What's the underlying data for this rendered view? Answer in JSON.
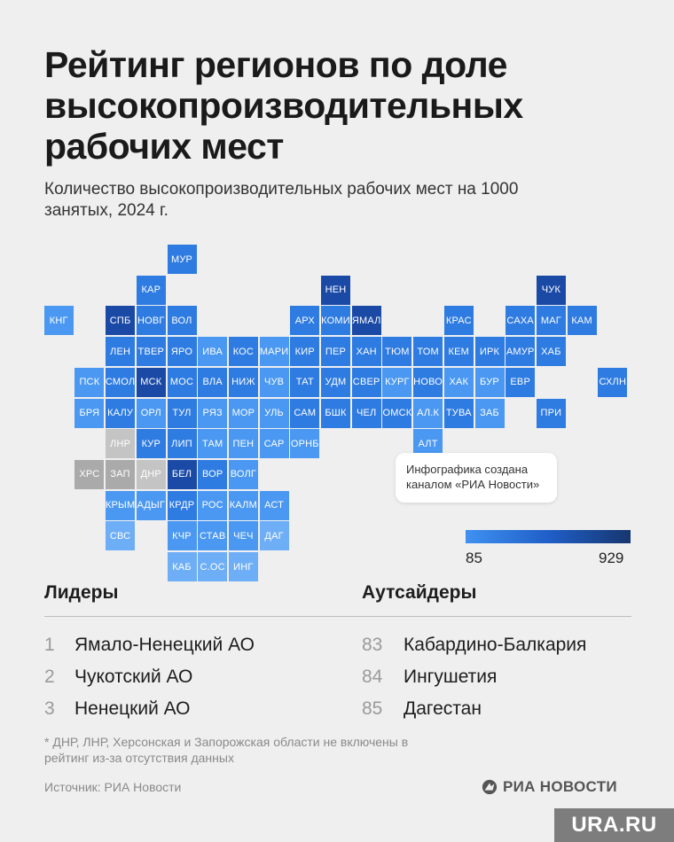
{
  "header": {
    "title": "Рейтинг регионов по доле высокопроизводительных рабочих мест",
    "subtitle": "Количество высокопроизводительных рабочих мест на 1000 занятых, 2024 г."
  },
  "map": {
    "colors": {
      "dark": "#1b4aa6",
      "mid": "#2e7be2",
      "light": "#4a98f2",
      "pale": "#6eaef7",
      "gray": "#c4c4c4",
      "nodata": "#aaaaaa"
    },
    "cells": [
      {
        "label": "МУР",
        "col": 5,
        "row": 0,
        "shade": "mid"
      },
      {
        "label": "КАР",
        "col": 4,
        "row": 1,
        "shade": "mid"
      },
      {
        "label": "НЕН",
        "col": 10,
        "row": 1,
        "shade": "dark"
      },
      {
        "label": "ЧУК",
        "col": 17,
        "row": 1,
        "shade": "dark"
      },
      {
        "label": "КНГ",
        "col": 1,
        "row": 2,
        "shade": "light"
      },
      {
        "label": "СПБ",
        "col": 3,
        "row": 2,
        "shade": "dark"
      },
      {
        "label": "НОВГ",
        "col": 4,
        "row": 2,
        "shade": "mid"
      },
      {
        "label": "ВОЛ",
        "col": 5,
        "row": 2,
        "shade": "mid"
      },
      {
        "label": "АРХ",
        "col": 9,
        "row": 2,
        "shade": "mid"
      },
      {
        "label": "КОМИ",
        "col": 10,
        "row": 2,
        "shade": "mid"
      },
      {
        "label": "ЯМАЛ",
        "col": 11,
        "row": 2,
        "shade": "dark"
      },
      {
        "label": "КРАС",
        "col": 14,
        "row": 2,
        "shade": "mid"
      },
      {
        "label": "САХА",
        "col": 16,
        "row": 2,
        "shade": "mid"
      },
      {
        "label": "МАГ",
        "col": 17,
        "row": 2,
        "shade": "mid"
      },
      {
        "label": "КАМ",
        "col": 18,
        "row": 2,
        "shade": "mid"
      },
      {
        "label": "ЛЕН",
        "col": 3,
        "row": 3,
        "shade": "mid"
      },
      {
        "label": "ТВЕР",
        "col": 4,
        "row": 3,
        "shade": "mid"
      },
      {
        "label": "ЯРО",
        "col": 5,
        "row": 3,
        "shade": "mid"
      },
      {
        "label": "ИВА",
        "col": 6,
        "row": 3,
        "shade": "light"
      },
      {
        "label": "КОС",
        "col": 7,
        "row": 3,
        "shade": "mid"
      },
      {
        "label": "МАРИ",
        "col": 8,
        "row": 3,
        "shade": "light"
      },
      {
        "label": "КИР",
        "col": 9,
        "row": 3,
        "shade": "mid"
      },
      {
        "label": "ПЕР",
        "col": 10,
        "row": 3,
        "shade": "mid"
      },
      {
        "label": "ХАН",
        "col": 11,
        "row": 3,
        "shade": "mid"
      },
      {
        "label": "ТЮМ",
        "col": 12,
        "row": 3,
        "shade": "mid"
      },
      {
        "label": "ТОМ",
        "col": 13,
        "row": 3,
        "shade": "mid"
      },
      {
        "label": "КЕМ",
        "col": 14,
        "row": 3,
        "shade": "mid"
      },
      {
        "label": "ИРК",
        "col": 15,
        "row": 3,
        "shade": "mid"
      },
      {
        "label": "АМУР",
        "col": 16,
        "row": 3,
        "shade": "mid"
      },
      {
        "label": "ХАБ",
        "col": 17,
        "row": 3,
        "shade": "mid"
      },
      {
        "label": "ПСК",
        "col": 2,
        "row": 4,
        "shade": "light"
      },
      {
        "label": "СМОЛ",
        "col": 3,
        "row": 4,
        "shade": "mid"
      },
      {
        "label": "МСК",
        "col": 4,
        "row": 4,
        "shade": "dark"
      },
      {
        "label": "МОС",
        "col": 5,
        "row": 4,
        "shade": "mid"
      },
      {
        "label": "ВЛА",
        "col": 6,
        "row": 4,
        "shade": "mid"
      },
      {
        "label": "НИЖ",
        "col": 7,
        "row": 4,
        "shade": "mid"
      },
      {
        "label": "ЧУВ",
        "col": 8,
        "row": 4,
        "shade": "light"
      },
      {
        "label": "ТАТ",
        "col": 9,
        "row": 4,
        "shade": "mid"
      },
      {
        "label": "УДМ",
        "col": 10,
        "row": 4,
        "shade": "mid"
      },
      {
        "label": "СВЕР",
        "col": 11,
        "row": 4,
        "shade": "mid"
      },
      {
        "label": "КУРГ",
        "col": 12,
        "row": 4,
        "shade": "light"
      },
      {
        "label": "НОВО",
        "col": 13,
        "row": 4,
        "shade": "mid"
      },
      {
        "label": "ХАК",
        "col": 14,
        "row": 4,
        "shade": "light"
      },
      {
        "label": "БУР",
        "col": 15,
        "row": 4,
        "shade": "light"
      },
      {
        "label": "ЕВР",
        "col": 16,
        "row": 4,
        "shade": "mid"
      },
      {
        "label": "СХЛН",
        "col": 19,
        "row": 4,
        "shade": "mid"
      },
      {
        "label": "БРЯ",
        "col": 2,
        "row": 5,
        "shade": "light"
      },
      {
        "label": "КАЛУ",
        "col": 3,
        "row": 5,
        "shade": "mid"
      },
      {
        "label": "ОРЛ",
        "col": 4,
        "row": 5,
        "shade": "light"
      },
      {
        "label": "ТУЛ",
        "col": 5,
        "row": 5,
        "shade": "mid"
      },
      {
        "label": "РЯЗ",
        "col": 6,
        "row": 5,
        "shade": "light"
      },
      {
        "label": "МОР",
        "col": 7,
        "row": 5,
        "shade": "light"
      },
      {
        "label": "УЛЬ",
        "col": 8,
        "row": 5,
        "shade": "light"
      },
      {
        "label": "САМ",
        "col": 9,
        "row": 5,
        "shade": "mid"
      },
      {
        "label": "БШК",
        "col": 10,
        "row": 5,
        "shade": "mid"
      },
      {
        "label": "ЧЕЛ",
        "col": 11,
        "row": 5,
        "shade": "mid"
      },
      {
        "label": "ОМСК",
        "col": 12,
        "row": 5,
        "shade": "mid"
      },
      {
        "label": "АЛ.К",
        "col": 13,
        "row": 5,
        "shade": "light"
      },
      {
        "label": "ТУВА",
        "col": 14,
        "row": 5,
        "shade": "mid"
      },
      {
        "label": "ЗАБ",
        "col": 15,
        "row": 5,
        "shade": "light"
      },
      {
        "label": "ПРИ",
        "col": 17,
        "row": 5,
        "shade": "mid"
      },
      {
        "label": "ЛНР",
        "col": 3,
        "row": 6,
        "shade": "gray"
      },
      {
        "label": "КУР",
        "col": 4,
        "row": 6,
        "shade": "mid"
      },
      {
        "label": "ЛИП",
        "col": 5,
        "row": 6,
        "shade": "mid"
      },
      {
        "label": "ТАМ",
        "col": 6,
        "row": 6,
        "shade": "light"
      },
      {
        "label": "ПЕН",
        "col": 7,
        "row": 6,
        "shade": "light"
      },
      {
        "label": "САР",
        "col": 8,
        "row": 6,
        "shade": "light"
      },
      {
        "label": "ОРНБ",
        "col": 9,
        "row": 6,
        "shade": "light"
      },
      {
        "label": "АЛТ",
        "col": 13,
        "row": 6,
        "shade": "light"
      },
      {
        "label": "ХРС",
        "col": 2,
        "row": 7,
        "shade": "nodata"
      },
      {
        "label": "ЗАП",
        "col": 3,
        "row": 7,
        "shade": "nodata"
      },
      {
        "label": "ДНР",
        "col": 4,
        "row": 7,
        "shade": "gray"
      },
      {
        "label": "БЕЛ",
        "col": 5,
        "row": 7,
        "shade": "dark"
      },
      {
        "label": "ВОР",
        "col": 6,
        "row": 7,
        "shade": "mid"
      },
      {
        "label": "ВОЛГ",
        "col": 7,
        "row": 7,
        "shade": "light"
      },
      {
        "label": "КРЫМ",
        "col": 3,
        "row": 8,
        "shade": "light"
      },
      {
        "label": "АДЫГ",
        "col": 4,
        "row": 8,
        "shade": "light"
      },
      {
        "label": "КРДР",
        "col": 5,
        "row": 8,
        "shade": "mid"
      },
      {
        "label": "РОС",
        "col": 6,
        "row": 8,
        "shade": "light"
      },
      {
        "label": "КАЛМ",
        "col": 7,
        "row": 8,
        "shade": "light"
      },
      {
        "label": "АСТ",
        "col": 8,
        "row": 8,
        "shade": "light"
      },
      {
        "label": "СВС",
        "col": 3,
        "row": 9,
        "shade": "pale"
      },
      {
        "label": "КЧР",
        "col": 5,
        "row": 9,
        "shade": "light"
      },
      {
        "label": "СТАВ",
        "col": 6,
        "row": 9,
        "shade": "light"
      },
      {
        "label": "ЧЕЧ",
        "col": 7,
        "row": 9,
        "shade": "light"
      },
      {
        "label": "ДАГ",
        "col": 8,
        "row": 9,
        "shade": "pale"
      },
      {
        "label": "КАБ",
        "col": 5,
        "row": 10,
        "shade": "pale"
      },
      {
        "label": "С.ОС",
        "col": 6,
        "row": 10,
        "shade": "pale"
      },
      {
        "label": "ИНГ",
        "col": 7,
        "row": 10,
        "shade": "pale"
      }
    ]
  },
  "note": "Инфографика создана каналом «РИА Новости»",
  "legend": {
    "min": "85",
    "max": "929"
  },
  "leaders": {
    "heading": "Лидеры",
    "items": [
      {
        "rank": "1",
        "name": "Ямало-Ненецкий АО"
      },
      {
        "rank": "2",
        "name": "Чукотский АО"
      },
      {
        "rank": "3",
        "name": "Ненецкий АО"
      }
    ]
  },
  "outsiders": {
    "heading": "Аутсайдеры",
    "items": [
      {
        "rank": "83",
        "name": "Кабардино-Балкария"
      },
      {
        "rank": "84",
        "name": "Ингушетия"
      },
      {
        "rank": "85",
        "name": "Дагестан"
      }
    ]
  },
  "footnote": "* ДНР, ЛНР, Херсонская и Запорожская области не включены в рейтинг из-за отсутствия данных",
  "source": "Источник: РИА Новости",
  "brand": "РИА НОВОСТИ",
  "watermark": "URA.RU"
}
